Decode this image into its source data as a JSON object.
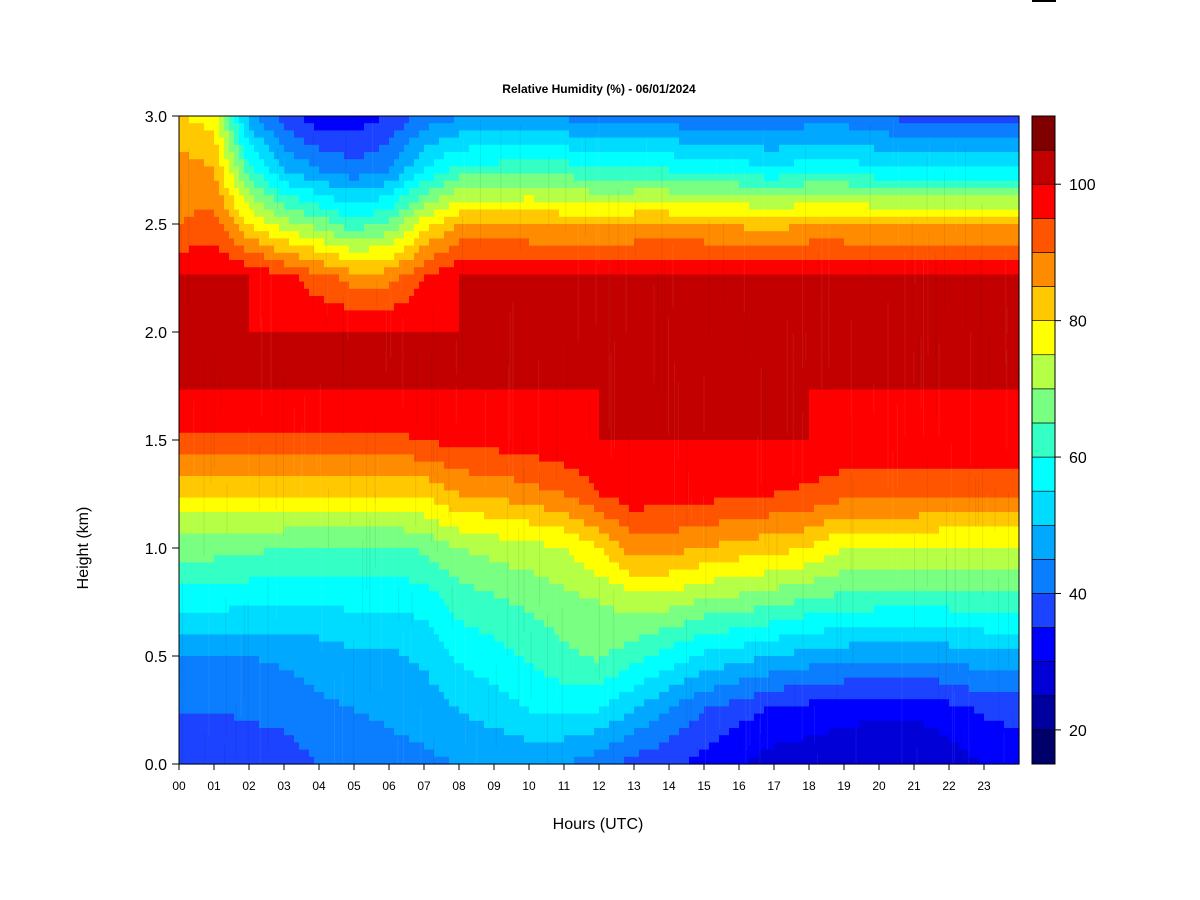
{
  "chart_data": {
    "type": "heatmap",
    "title": "Relative Humidity (%) - 06/01/2024",
    "xlabel": "Hours (UTC)",
    "ylabel": "Height (km)",
    "x_ticks": [
      "00",
      "01",
      "02",
      "03",
      "04",
      "05",
      "06",
      "07",
      "08",
      "09",
      "10",
      "11",
      "12",
      "13",
      "14",
      "15",
      "16",
      "17",
      "18",
      "19",
      "20",
      "21",
      "22",
      "23"
    ],
    "xlim": [
      0,
      24
    ],
    "y_ticks": [
      "0.0",
      "0.5",
      "1.0",
      "1.5",
      "2.0",
      "2.5",
      "3.0"
    ],
    "ylim": [
      0,
      3
    ],
    "colorbar": {
      "min": 15,
      "max": 100,
      "step": 5,
      "tick_labels": [
        "20",
        "40",
        "60",
        "80",
        "100"
      ],
      "colors": [
        "#00006b",
        "#00009e",
        "#0000d7",
        "#0000ff",
        "#1c43ff",
        "#0b7eff",
        "#00a8ff",
        "#00dcff",
        "#00ffff",
        "#34ffc5",
        "#79ff82",
        "#b5ff47",
        "#ffff00",
        "#ffc800",
        "#ff8c00",
        "#ff5500",
        "#ff0000",
        "#c30000"
      ],
      "over_color": "#800000"
    },
    "profile_heights_km": [
      0.0,
      0.25,
      0.5,
      0.75,
      1.0,
      1.25,
      1.5,
      1.75,
      2.0,
      2.25,
      2.5,
      2.75,
      3.0
    ],
    "profiles": [
      {
        "hour": 0,
        "rh": [
          35,
          40,
          45,
          57,
          67,
          80,
          94,
          100,
          100,
          100,
          90,
          88,
          80
        ]
      },
      {
        "hour": 1,
        "rh": [
          36,
          40,
          45,
          57,
          67,
          80,
          94,
          100,
          100,
          100,
          92,
          85,
          78
        ]
      },
      {
        "hour": 2,
        "rh": [
          36,
          41,
          45,
          56,
          66,
          80,
          94,
          100,
          100,
          100,
          80,
          62,
          47
        ]
      },
      {
        "hour": 3,
        "rh": [
          37,
          42,
          46,
          56,
          65,
          80,
          94,
          100,
          100,
          97,
          72,
          50,
          37
        ]
      },
      {
        "hour": 4,
        "rh": [
          40,
          44,
          47,
          56,
          64,
          80,
          94,
          100,
          100,
          92,
          68,
          45,
          32
        ]
      },
      {
        "hour": 5,
        "rh": [
          42,
          45,
          49,
          56,
          64,
          80,
          94,
          100,
          100,
          88,
          62,
          42,
          32
        ]
      },
      {
        "hour": 6,
        "rh": [
          43,
          46,
          49,
          56,
          64,
          80,
          94,
          100,
          100,
          88,
          66,
          45,
          35
        ]
      },
      {
        "hour": 7,
        "rh": [
          44,
          47,
          51,
          57,
          66,
          81,
          95,
          100,
          100,
          95,
          78,
          55,
          42
        ]
      },
      {
        "hour": 8,
        "rh": [
          45,
          50,
          56,
          62,
          70,
          85,
          97,
          100,
          100,
          100,
          85,
          62,
          44
        ]
      },
      {
        "hour": 9,
        "rh": [
          46,
          52,
          58,
          64,
          72,
          86,
          97,
          100,
          100,
          100,
          85,
          62,
          46
        ]
      },
      {
        "hour": 10,
        "rh": [
          46,
          55,
          61,
          66,
          73,
          88,
          98,
          100,
          100,
          100,
          85,
          64,
          46
        ]
      },
      {
        "hour": 11,
        "rh": [
          45,
          56,
          64,
          68,
          75,
          90,
          99,
          100,
          100,
          100,
          84,
          63,
          44
        ]
      },
      {
        "hour": 12,
        "rh": [
          42,
          55,
          66,
          70,
          80,
          95,
          100,
          100,
          100,
          100,
          84,
          60,
          42
        ]
      },
      {
        "hour": 13,
        "rh": [
          38,
          50,
          62,
          72,
          88,
          98,
          100,
          100,
          100,
          100,
          85,
          60,
          42
        ]
      },
      {
        "hour": 14,
        "rh": [
          36,
          45,
          58,
          72,
          87,
          97,
          100,
          100,
          100,
          100,
          85,
          60,
          42
        ]
      },
      {
        "hour": 15,
        "rh": [
          33,
          40,
          54,
          69,
          85,
          97,
          100,
          100,
          100,
          100,
          85,
          59,
          40
        ]
      },
      {
        "hour": 16,
        "rh": [
          30,
          37,
          52,
          68,
          83,
          96,
          100,
          100,
          100,
          100,
          84,
          58,
          40
        ]
      },
      {
        "hour": 17,
        "rh": [
          28,
          34,
          50,
          66,
          82,
          95,
          100,
          100,
          100,
          100,
          83,
          56,
          40
        ]
      },
      {
        "hour": 18,
        "rh": [
          27,
          33,
          48,
          64,
          80,
          94,
          100,
          100,
          100,
          100,
          85,
          58,
          42
        ]
      },
      {
        "hour": 19,
        "rh": [
          26,
          32,
          47,
          63,
          75,
          92,
          99,
          100,
          100,
          100,
          85,
          58,
          42
        ]
      },
      {
        "hour": 20,
        "rh": [
          25,
          31,
          46,
          62,
          75,
          92,
          99,
          100,
          100,
          100,
          84,
          56,
          40
        ]
      },
      {
        "hour": 21,
        "rh": [
          25,
          31,
          46,
          62,
          75,
          92,
          99,
          100,
          100,
          100,
          84,
          56,
          38
        ]
      },
      {
        "hour": 22,
        "rh": [
          27,
          33,
          47,
          62,
          74,
          91,
          99,
          100,
          100,
          100,
          84,
          56,
          38
        ]
      },
      {
        "hour": 23,
        "rh": [
          30,
          36,
          48,
          63,
          74,
          91,
          99,
          100,
          100,
          100,
          84,
          55,
          38
        ]
      },
      {
        "hour": 24,
        "rh": [
          31,
          37,
          48,
          63,
          74,
          91,
          99,
          100,
          100,
          100,
          84,
          55,
          38
        ]
      }
    ]
  }
}
